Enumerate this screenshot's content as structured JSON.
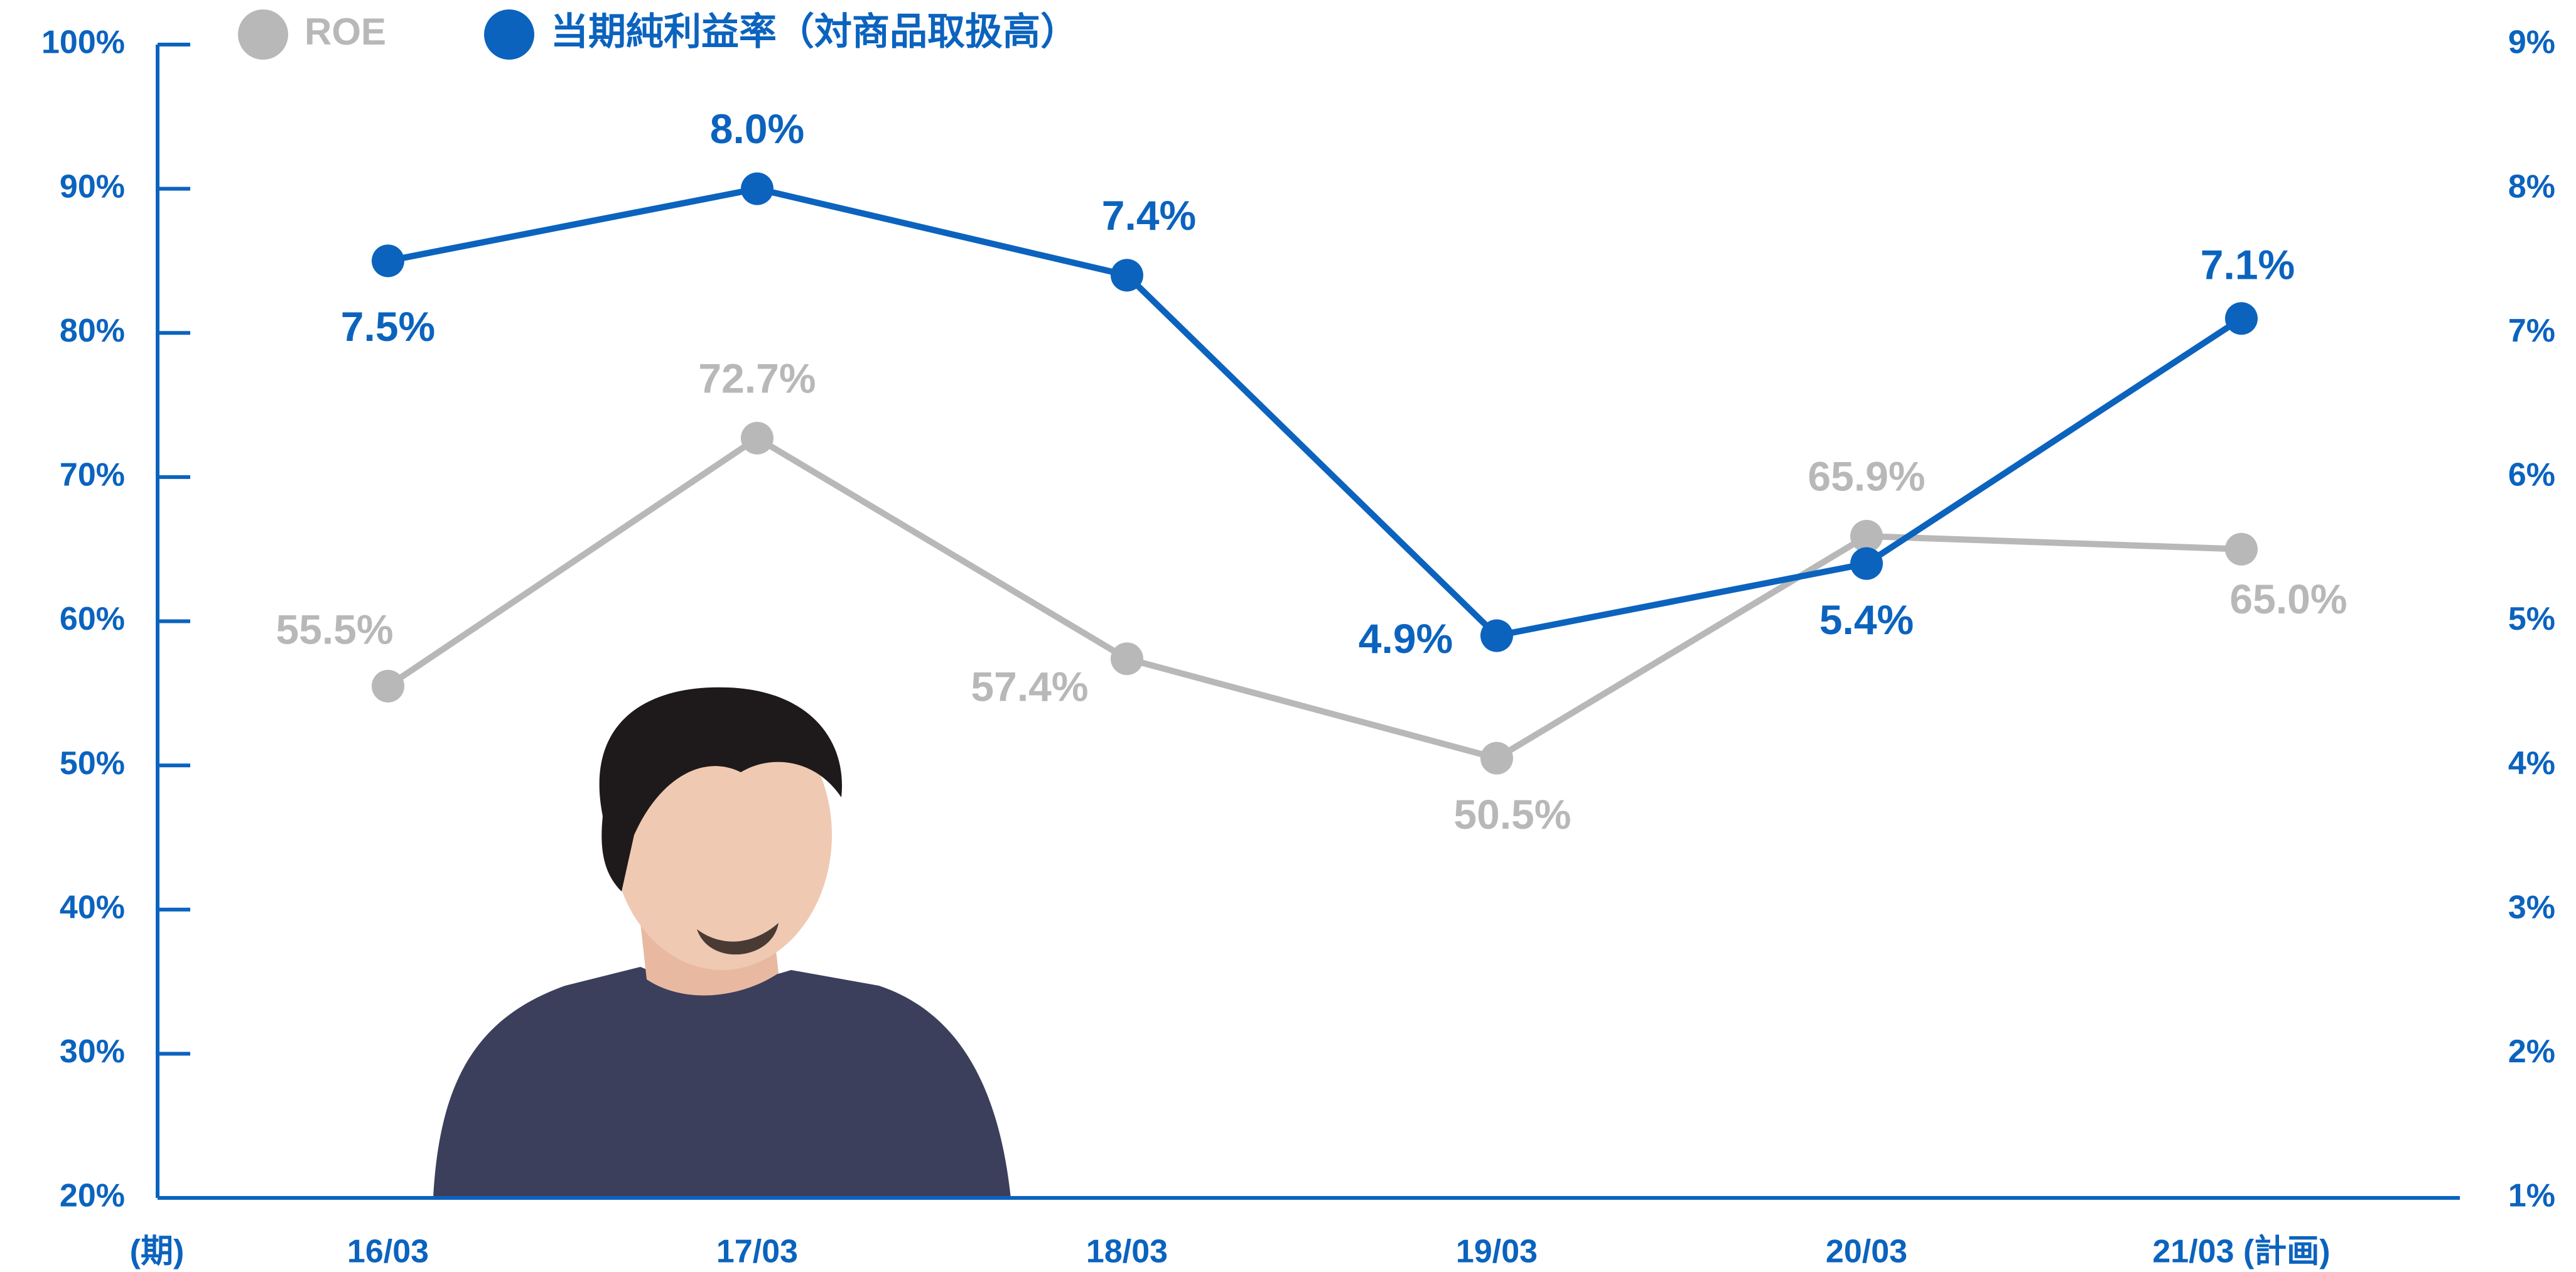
{
  "chart_data": {
    "type": "line",
    "categories": [
      "16/03",
      "17/03",
      "18/03",
      "19/03",
      "20/03",
      "21/03 (計画)"
    ],
    "x_label": "(期)",
    "series": [
      {
        "name": "ROE",
        "color": "#b8b8b8",
        "axis": "y",
        "values": [
          55.5,
          72.7,
          57.4,
          50.5,
          65.9,
          65.0
        ],
        "value_labels": [
          "55.5%",
          "72.7%",
          "57.4%",
          "50.5%",
          "65.9%",
          "65.0%"
        ]
      },
      {
        "name": "当期純利益率（対商品取扱高）",
        "color": "#0b63be",
        "axis": "y2",
        "values": [
          7.5,
          8.0,
          7.4,
          4.9,
          5.4,
          7.1
        ],
        "value_labels": [
          "7.5%",
          "8.0%",
          "7.4%",
          "4.9%",
          "5.4%",
          "7.1%"
        ]
      }
    ],
    "ylim": [
      20,
      100
    ],
    "yticks": [
      {
        "value": 20,
        "label": "20%"
      },
      {
        "value": 30,
        "label": "30%"
      },
      {
        "value": 40,
        "label": "40%"
      },
      {
        "value": 50,
        "label": "50%"
      },
      {
        "value": 60,
        "label": "60%"
      },
      {
        "value": 70,
        "label": "70%"
      },
      {
        "value": 80,
        "label": "80%"
      },
      {
        "value": 90,
        "label": "90%"
      },
      {
        "value": 100,
        "label": "100%"
      }
    ],
    "y2lim": [
      1,
      9
    ],
    "y2ticks": [
      {
        "value": 1,
        "label": "1%"
      },
      {
        "value": 2,
        "label": "2%"
      },
      {
        "value": 3,
        "label": "3%"
      },
      {
        "value": 4,
        "label": "4%"
      },
      {
        "value": 5,
        "label": "5%"
      },
      {
        "value": 6,
        "label": "6%"
      },
      {
        "value": 7,
        "label": "7%"
      },
      {
        "value": 8,
        "label": "8%"
      },
      {
        "value": 9,
        "label": "9%"
      }
    ],
    "axis_color": "#0b63be"
  }
}
